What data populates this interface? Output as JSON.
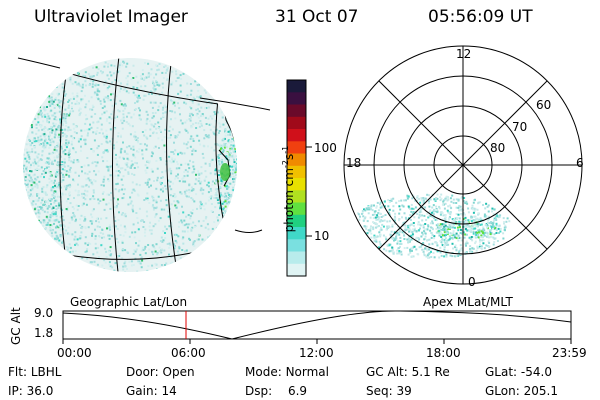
{
  "header": {
    "instrument": "Ultraviolet Imager",
    "date": "31 Oct 07",
    "time": "05:56:09 UT"
  },
  "colorbar": {
    "unit_label": "photon cm",
    "unit_sup1": "-2",
    "unit_mid": "s",
    "unit_sup2": "-1",
    "tick_100": "100",
    "tick_10": "10",
    "colors": [
      "#1a1a3a",
      "#3a1040",
      "#6a0a2a",
      "#a00a1a",
      "#d0101a",
      "#f04010",
      "#f08a00",
      "#f0c000",
      "#e8e000",
      "#b0e020",
      "#60e040",
      "#20d080",
      "#40d8c8",
      "#7ae0e0",
      "#b8ecec",
      "#e0f4f4"
    ]
  },
  "geo_panel": {
    "label": "Geographic Lat/Lon"
  },
  "polar_panel": {
    "label": "Apex MLat/MLT",
    "mlt_12": "12",
    "mlt_18": "18",
    "mlt_6": "6",
    "mlt_0": "0",
    "lat_60": "60",
    "lat_70": "70",
    "lat_80": "80"
  },
  "altitude_plot": {
    "y_title": "GC Alt",
    "y_top": "9.0",
    "y_bottom": "1.8",
    "x_ticks": [
      "00:00",
      "06:00",
      "12:00",
      "18:00",
      "23:59"
    ],
    "current_marker_color": "#e00000"
  },
  "status": {
    "flt_label": "Flt:",
    "flt_value": "LBHL",
    "door_label": "Door:",
    "door_value": "Open",
    "mode_label": "Mode:",
    "mode_value": "Normal",
    "gcalt_label": "GC Alt:",
    "gcalt_value": "5.1 Re",
    "glat_label": "GLat:",
    "glat_value": "-54.0",
    "ip_label": "IP:",
    "ip_value": "36.0",
    "gain_label": "Gain:",
    "gain_value": "14",
    "dsp_label": "Dsp:",
    "dsp_value": "6.9",
    "seq_label": "Seq:",
    "seq_value": "39",
    "glon_label": "GLon:",
    "glon_value": "205.1"
  }
}
